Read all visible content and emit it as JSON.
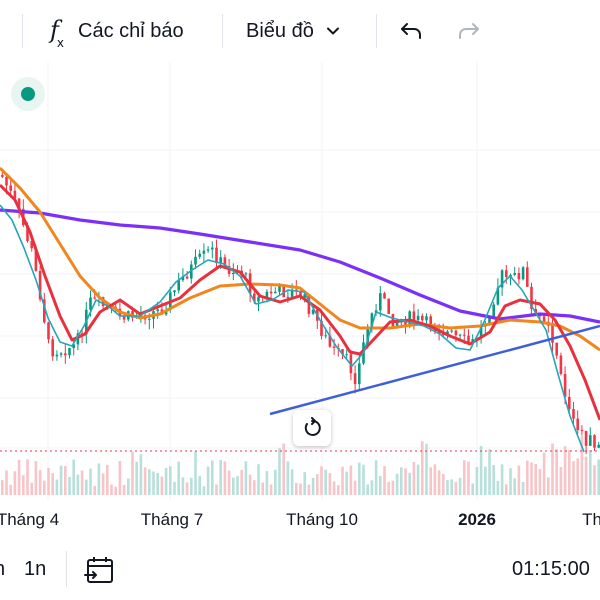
{
  "toolbar": {
    "indicators_label": "Các chỉ báo",
    "chart_type_label": "Biểu đồ",
    "icons": [
      "fx-icon",
      "chevron-down-icon",
      "undo-icon",
      "redo-icon"
    ]
  },
  "chart": {
    "x_axis_ticks": [
      "Tháng 4",
      "Tháng 7",
      "Tháng 10",
      "2026",
      "Th"
    ],
    "colors": {
      "up": "#089981",
      "down": "#f23645",
      "ma_purple": "#7b2ff7",
      "ma_orange": "#f0861c",
      "ma_red": "#e8313f",
      "ma_teal": "#26a5b8",
      "trendline": "#3f5fd8",
      "volume_up": "#b7e0da",
      "volume_down": "#f7c4c8"
    }
  },
  "bottom_bar": {
    "interval_left": "n",
    "interval_1n": "1n",
    "time": "01:15:00",
    "icons": [
      "calendar-range-icon"
    ]
  }
}
